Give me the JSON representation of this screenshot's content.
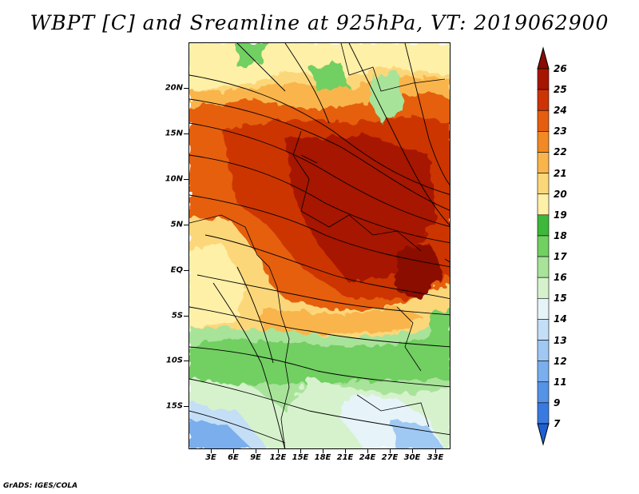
{
  "title": "WBPT [C] and Sreamline at 925hPa, VT: 2019062900",
  "footer": "GrADS: IGES/COLA",
  "map": {
    "lat_labels": [
      "20N",
      "15N",
      "10N",
      "5N",
      "EQ",
      "5S",
      "10S",
      "15S"
    ],
    "lon_labels": [
      "3E",
      "6E",
      "9E",
      "12E",
      "15E",
      "18E",
      "21E",
      "24E",
      "27E",
      "30E",
      "33E"
    ]
  },
  "colorbar": {
    "levels": [
      "7",
      "9",
      "11",
      "12",
      "13",
      "14",
      "15",
      "16",
      "17",
      "18",
      "19",
      "20",
      "21",
      "22",
      "23",
      "24",
      "25",
      "26"
    ],
    "colors": [
      "#1f5fd4",
      "#3a7ae0",
      "#5593e6",
      "#7aaeec",
      "#9fc8f2",
      "#c4def6",
      "#e6f4f9",
      "#d6f2cc",
      "#a8e39a",
      "#72cf62",
      "#3eb83a",
      "#fff0a8",
      "#fcd77a",
      "#f9b54c",
      "#f18a24",
      "#e55e10",
      "#cc3406",
      "#a61500",
      "#8a0b00"
    ]
  }
}
